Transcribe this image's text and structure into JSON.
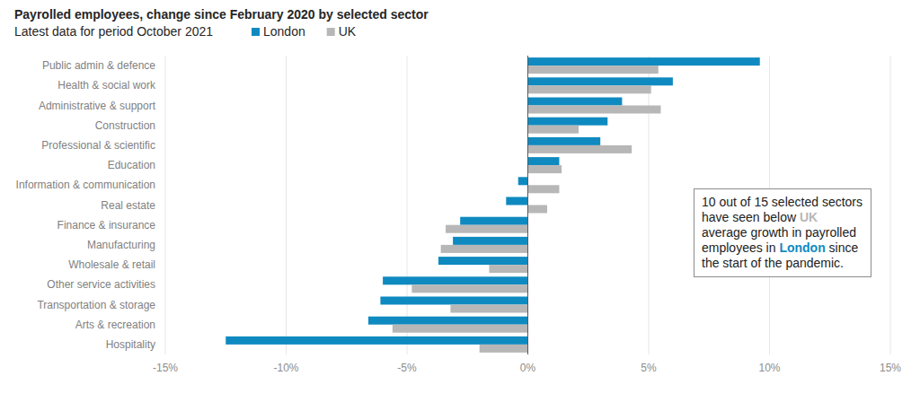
{
  "chart_data": {
    "type": "bar",
    "orientation": "horizontal",
    "title": "Payrolled employees, change since February 2020 by selected sector",
    "subtitle": "Latest data for period October 2021",
    "annotation": "10 out of 15 selected sectors have seen below UK average growth in payrolled employees in London since the start of the pandemic.",
    "categories": [
      "Public admin & defence",
      "Health & social work",
      "Administrative & support",
      "Construction",
      "Professional & scientific",
      "Education",
      "Information & communication",
      "Real estate",
      "Finance & insurance",
      "Manufacturing",
      "Wholesale & retail",
      "Other service activities",
      "Transportation & storage",
      "Arts & recreation",
      "Hospitality"
    ],
    "series": [
      {
        "name": "London",
        "color": "#0f8ac0",
        "values": [
          9.6,
          6.0,
          3.9,
          3.3,
          3.0,
          1.3,
          -0.4,
          -0.9,
          -2.8,
          -3.1,
          -3.7,
          -6.0,
          -6.1,
          -6.6,
          -12.5
        ]
      },
      {
        "name": "UK",
        "color": "#b7b7b7",
        "values": [
          5.4,
          5.1,
          5.5,
          2.1,
          4.3,
          1.4,
          1.3,
          0.8,
          -3.4,
          -3.6,
          -1.6,
          -4.8,
          -3.2,
          -5.6,
          -2.0
        ]
      }
    ],
    "xlim": [
      -15,
      15
    ],
    "xticks": [
      {
        "value": -15,
        "label": "-15%"
      },
      {
        "value": -10,
        "label": "-10%"
      },
      {
        "value": -5,
        "label": "-5%"
      },
      {
        "value": 0,
        "label": "0%"
      },
      {
        "value": 5,
        "label": "5%"
      },
      {
        "value": 10,
        "label": "10%"
      },
      {
        "value": 15,
        "label": "15%"
      }
    ],
    "grid": true,
    "legend": "top"
  }
}
